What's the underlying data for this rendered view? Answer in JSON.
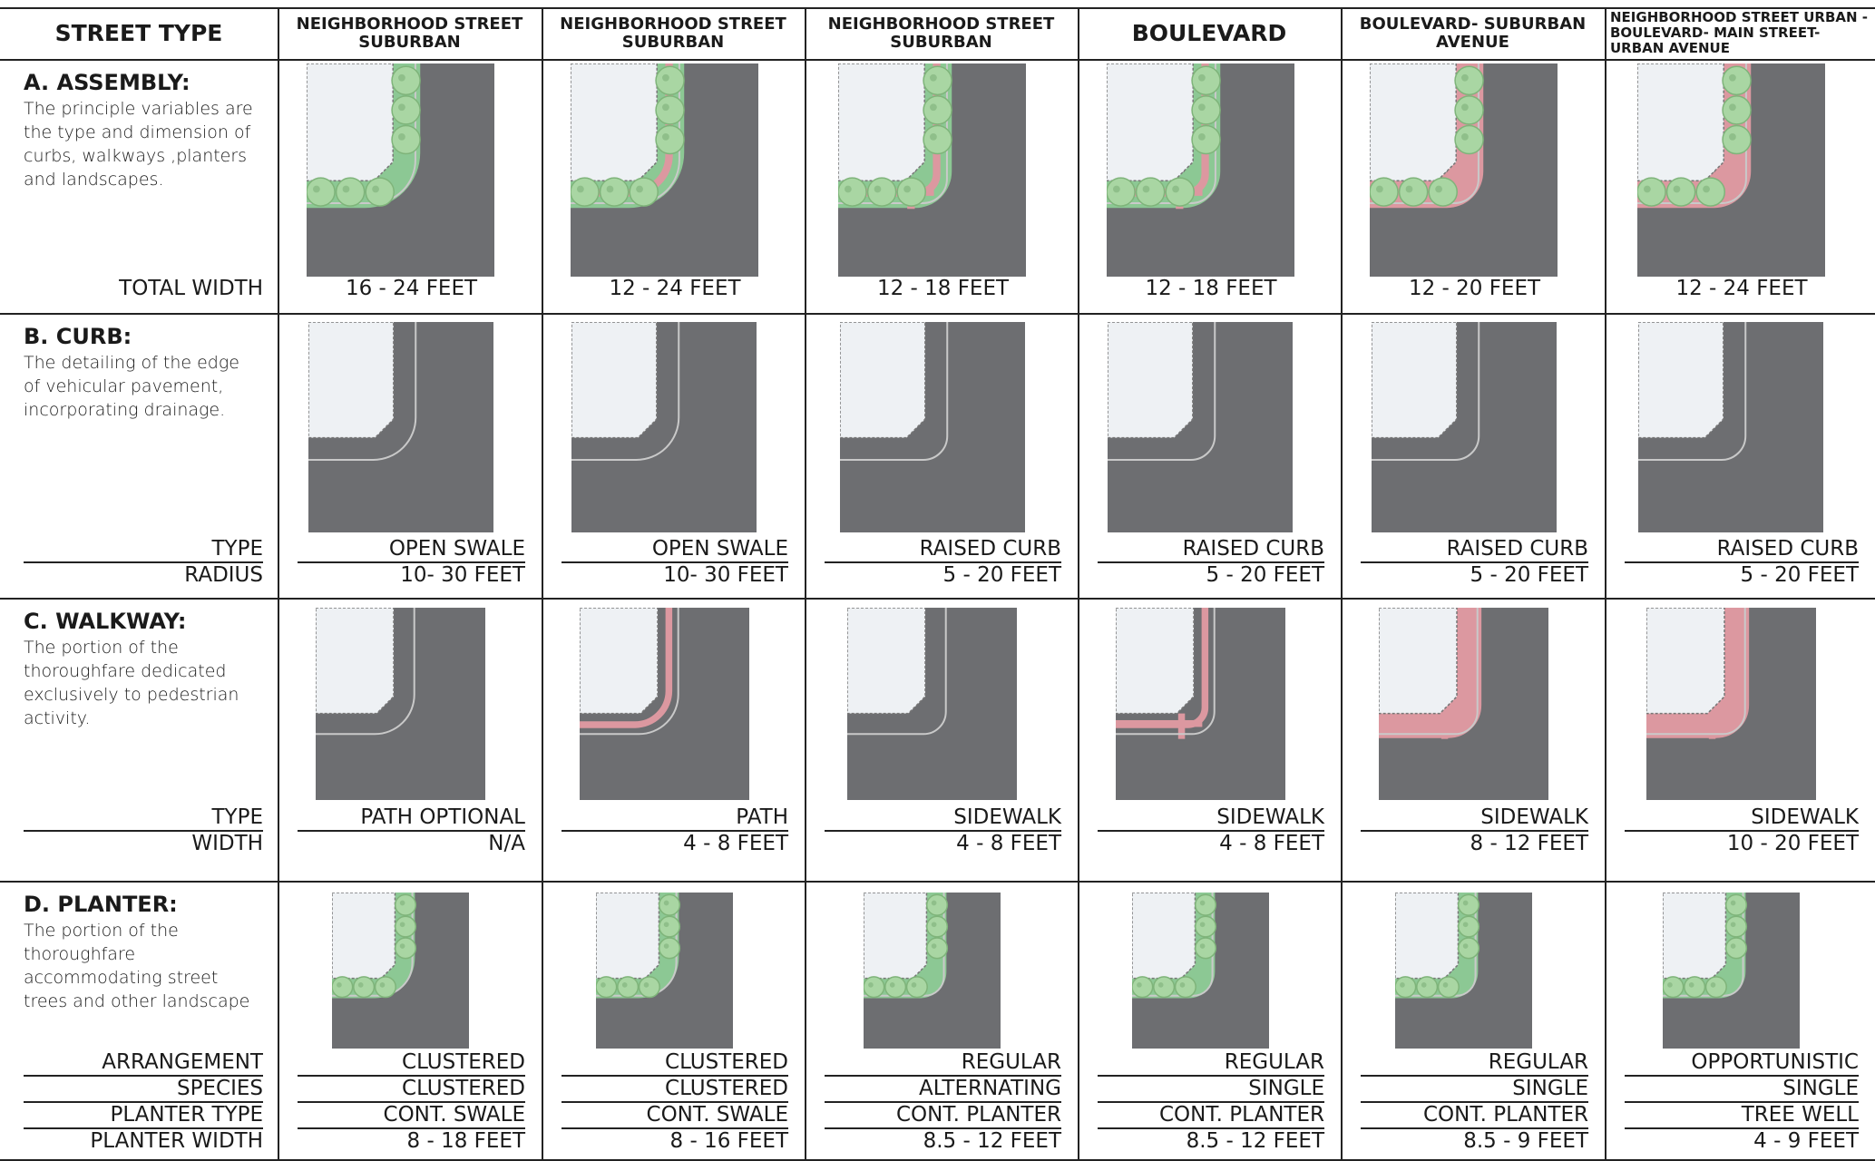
{
  "header": {
    "columns": [
      "STREET TYPE",
      "NEIGHBORHOOD STREET SUBURBAN",
      "NEIGHBORHOOD STREET SUBURBAN",
      "NEIGHBORHOOD STREET SUBURBAN",
      "BOULEVARD",
      "BOULEVARD- SUBURBAN AVENUE",
      "NEIGHBORHOOD STREET URBAN - BOULEVARD- MAIN STREET- URBAN AVENUE"
    ]
  },
  "sections": [
    {
      "title": "A. ASSEMBLY:",
      "description": "The principle variables are the type and dimension of curbs, walkways ,planters and landscapes.",
      "labels": [
        "TOTAL WIDTH"
      ],
      "values": [
        [
          "16 - 24 FEET"
        ],
        [
          "12 - 24 FEET"
        ],
        [
          "12 - 18 FEET"
        ],
        [
          "12 - 18 FEET"
        ],
        [
          "12 - 20 FEET"
        ],
        [
          "12 - 24 FEET"
        ]
      ]
    },
    {
      "title": "B. CURB:",
      "description": "The detailing of the edge of vehicular pavement, incorporating drainage.",
      "labels": [
        "TYPE",
        "RADIUS"
      ],
      "values": [
        [
          "OPEN SWALE",
          "10- 30 FEET"
        ],
        [
          "OPEN SWALE",
          "10- 30 FEET"
        ],
        [
          "RAISED CURB",
          "5 - 20 FEET"
        ],
        [
          "RAISED CURB",
          "5 - 20 FEET"
        ],
        [
          "RAISED CURB",
          "5 - 20 FEET"
        ],
        [
          "RAISED CURB",
          "5 - 20 FEET"
        ]
      ]
    },
    {
      "title": "C. WALKWAY:",
      "description": "The portion of the thoroughfare dedicated exclusively to pedestrian activity.",
      "labels": [
        "TYPE",
        "WIDTH"
      ],
      "values": [
        [
          "PATH OPTIONAL",
          "N/A"
        ],
        [
          "PATH",
          "4 - 8 FEET"
        ],
        [
          "SIDEWALK",
          "4 - 8 FEET"
        ],
        [
          "SIDEWALK",
          "4 - 8 FEET"
        ],
        [
          "SIDEWALK",
          "8 - 12 FEET"
        ],
        [
          "SIDEWALK",
          "10 - 20 FEET"
        ]
      ]
    },
    {
      "title": "D. PLANTER:",
      "description": "The portion of the thoroughfare accommodating street trees and other landscape",
      "labels": [
        "ARRANGEMENT",
        "SPECIES",
        "PLANTER TYPE",
        "PLANTER WIDTH"
      ],
      "values": [
        [
          "CLUSTERED",
          "CLUSTERED",
          "CONT. SWALE",
          "8 - 18 FEET"
        ],
        [
          "CLUSTERED",
          "CLUSTERED",
          "CONT. SWALE",
          "8 - 16 FEET"
        ],
        [
          "REGULAR",
          "ALTERNATING",
          "CONT. PLANTER",
          "8.5 - 12 FEET"
        ],
        [
          "REGULAR",
          "SINGLE",
          "CONT. PLANTER",
          "8.5 - 12 FEET"
        ],
        [
          "REGULAR",
          "SINGLE",
          "CONT. PLANTER",
          "8.5 - 9 FEET"
        ],
        [
          "OPPORTUNISTIC",
          "SINGLE",
          "TREE WELL",
          "4 - 9 FEET"
        ]
      ]
    }
  ]
}
